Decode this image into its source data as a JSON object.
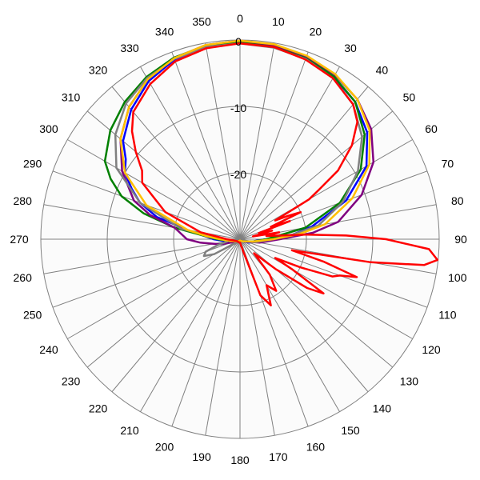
{
  "chart_data": {
    "type": "polar-line",
    "angle_ticks": [
      "0",
      "10",
      "20",
      "30",
      "40",
      "50",
      "60",
      "70",
      "80",
      "90",
      "100",
      "110",
      "120",
      "130",
      "140",
      "150",
      "160",
      "170",
      "180",
      "190",
      "200",
      "210",
      "220",
      "230",
      "240",
      "250",
      "260",
      "270",
      "280",
      "290",
      "300",
      "310",
      "320",
      "330",
      "340",
      "350"
    ],
    "radial_ticks": [
      "0",
      "-10",
      "-20"
    ],
    "rlim": [
      -30,
      0
    ],
    "angular_direction": "clockwise",
    "zero_at": "top",
    "grid": true,
    "legend": "none",
    "series": [
      {
        "color": "#ff0000",
        "points": [
          [
            0,
            -0.5
          ],
          [
            10,
            -0.6
          ],
          [
            20,
            -1.2
          ],
          [
            30,
            -2.0
          ],
          [
            40,
            -3.5
          ],
          [
            45,
            -5.0
          ],
          [
            50,
            -8.0
          ],
          [
            55,
            -12.0
          ],
          [
            58,
            -16.0
          ],
          [
            60,
            -18.0
          ],
          [
            62,
            -24.0
          ],
          [
            64,
            -22.0
          ],
          [
            66,
            -20.0
          ],
          [
            68,
            -25.0
          ],
          [
            70,
            -22.0
          ],
          [
            72,
            -27.0
          ],
          [
            75,
            -25.0
          ],
          [
            78,
            -28.0
          ],
          [
            80,
            -24.0
          ],
          [
            83,
            -26.0
          ],
          [
            86,
            -20.0
          ],
          [
            88,
            -14.0
          ],
          [
            90,
            -8.0
          ],
          [
            93,
            -1.5
          ],
          [
            96,
            -0.1
          ],
          [
            98,
            -2.0
          ],
          [
            100,
            -10.0
          ],
          [
            102,
            -22.0
          ],
          [
            105,
            -17.0
          ],
          [
            108,
            -11.5
          ],
          [
            110,
            -14.0
          ],
          [
            112,
            -15.0
          ],
          [
            115,
            -20.0
          ],
          [
            118,
            -24.0
          ],
          [
            120,
            -21.0
          ],
          [
            123,
            -15.0
          ],
          [
            126,
            -17.5
          ],
          [
            130,
            -23.0
          ],
          [
            135,
            -27.0
          ],
          [
            140,
            -23.0
          ],
          [
            145,
            -20.5
          ],
          [
            150,
            -22.0
          ],
          [
            155,
            -19.0
          ],
          [
            160,
            -21.0
          ],
          [
            165,
            -28.0
          ],
          [
            180,
            -29.5
          ],
          [
            200,
            -29.5
          ],
          [
            230,
            -29.5
          ],
          [
            260,
            -29.0
          ],
          [
            270,
            -28.0
          ],
          [
            280,
            -24.0
          ],
          [
            290,
            -18.0
          ],
          [
            300,
            -13.0
          ],
          [
            305,
            -12.0
          ],
          [
            310,
            -9.5
          ],
          [
            315,
            -7.0
          ],
          [
            320,
            -5.0
          ],
          [
            330,
            -3.0
          ],
          [
            340,
            -1.5
          ],
          [
            350,
            -0.8
          ],
          [
            360,
            -0.5
          ]
        ]
      },
      {
        "color": "#0000ff",
        "points": [
          [
            0,
            -0.3
          ],
          [
            10,
            -0.5
          ],
          [
            20,
            -1.0
          ],
          [
            30,
            -1.8
          ],
          [
            40,
            -3.0
          ],
          [
            50,
            -5.0
          ],
          [
            60,
            -8.0
          ],
          [
            70,
            -13.0
          ],
          [
            80,
            -19.0
          ],
          [
            85,
            -22.0
          ],
          [
            90,
            -26.0
          ],
          [
            95,
            -27.5
          ],
          [
            100,
            -28.0
          ],
          [
            110,
            -28.5
          ],
          [
            130,
            -29.5
          ],
          [
            180,
            -29.8
          ],
          [
            230,
            -29.5
          ],
          [
            250,
            -29.0
          ],
          [
            260,
            -28.0
          ],
          [
            270,
            -26.0
          ],
          [
            280,
            -22.0
          ],
          [
            285,
            -17.0
          ],
          [
            290,
            -14.0
          ],
          [
            295,
            -12.0
          ],
          [
            300,
            -10.0
          ],
          [
            305,
            -9.0
          ],
          [
            310,
            -7.0
          ],
          [
            320,
            -4.5
          ],
          [
            330,
            -2.5
          ],
          [
            340,
            -1.2
          ],
          [
            350,
            -0.5
          ],
          [
            360,
            -0.3
          ]
        ]
      },
      {
        "color": "#008000",
        "points": [
          [
            0,
            -0.2
          ],
          [
            10,
            -0.4
          ],
          [
            20,
            -0.9
          ],
          [
            30,
            -1.7
          ],
          [
            40,
            -3.0
          ],
          [
            50,
            -5.5
          ],
          [
            60,
            -9.0
          ],
          [
            70,
            -14.0
          ],
          [
            80,
            -20.0
          ],
          [
            90,
            -26.0
          ],
          [
            100,
            -28.0
          ],
          [
            130,
            -29.5
          ],
          [
            180,
            -29.8
          ],
          [
            230,
            -29.5
          ],
          [
            260,
            -28.5
          ],
          [
            270,
            -26.5
          ],
          [
            280,
            -20.0
          ],
          [
            285,
            -15.0
          ],
          [
            290,
            -11.0
          ],
          [
            295,
            -8.5
          ],
          [
            300,
            -6.5
          ],
          [
            310,
            -4.5
          ],
          [
            320,
            -3.0
          ],
          [
            330,
            -1.8
          ],
          [
            340,
            -0.9
          ],
          [
            350,
            -0.4
          ],
          [
            360,
            -0.2
          ]
        ]
      },
      {
        "color": "#800080",
        "points": [
          [
            0,
            -0.1
          ],
          [
            10,
            -0.3
          ],
          [
            20,
            -0.7
          ],
          [
            30,
            -1.4
          ],
          [
            40,
            -2.5
          ],
          [
            50,
            -4.2
          ],
          [
            60,
            -6.8
          ],
          [
            70,
            -10.5
          ],
          [
            80,
            -15.0
          ],
          [
            85,
            -19.0
          ],
          [
            90,
            -24.0
          ],
          [
            95,
            -26.0
          ],
          [
            100,
            -27.0
          ],
          [
            130,
            -29.5
          ],
          [
            180,
            -29.8
          ],
          [
            230,
            -29.5
          ],
          [
            250,
            -28.5
          ],
          [
            255,
            -27.0
          ],
          [
            260,
            -26.0
          ],
          [
            265,
            -24.0
          ],
          [
            270,
            -22.0
          ],
          [
            280,
            -20.0
          ],
          [
            285,
            -16.0
          ],
          [
            290,
            -13.0
          ],
          [
            300,
            -9.5
          ],
          [
            310,
            -6.5
          ],
          [
            320,
            -4.0
          ],
          [
            330,
            -2.2
          ],
          [
            340,
            -1.0
          ],
          [
            350,
            -0.3
          ],
          [
            360,
            -0.1
          ]
        ]
      },
      {
        "color": "#808080",
        "points": [
          [
            0,
            -0.5
          ],
          [
            10,
            -0.7
          ],
          [
            20,
            -1.1
          ],
          [
            30,
            -2.0
          ],
          [
            40,
            -3.5
          ],
          [
            50,
            -6.0
          ],
          [
            60,
            -9.5
          ],
          [
            70,
            -13.5
          ],
          [
            80,
            -18.0
          ],
          [
            85,
            -22.0
          ],
          [
            90,
            -25.0
          ],
          [
            100,
            -27.5
          ],
          [
            130,
            -29.5
          ],
          [
            180,
            -29.8
          ],
          [
            230,
            -29.0
          ],
          [
            240,
            -25.5
          ],
          [
            245,
            -24.0
          ],
          [
            250,
            -24.5
          ],
          [
            255,
            -26.5
          ],
          [
            260,
            -28.0
          ],
          [
            270,
            -27.5
          ],
          [
            280,
            -21.0
          ],
          [
            290,
            -14.0
          ],
          [
            300,
            -8.5
          ],
          [
            310,
            -5.5
          ],
          [
            320,
            -3.3
          ],
          [
            330,
            -2.0
          ],
          [
            340,
            -1.1
          ],
          [
            350,
            -0.6
          ],
          [
            360,
            -0.5
          ]
        ]
      },
      {
        "color": "#ffc000",
        "points": [
          [
            0,
            -0.1
          ],
          [
            10,
            -0.2
          ],
          [
            20,
            -0.6
          ],
          [
            30,
            -1.3
          ],
          [
            40,
            -2.5
          ],
          [
            50,
            -4.5
          ],
          [
            60,
            -7.5
          ],
          [
            70,
            -12.0
          ],
          [
            80,
            -17.0
          ],
          [
            85,
            -21.0
          ],
          [
            90,
            -25.0
          ],
          [
            100,
            -28.0
          ],
          [
            130,
            -29.5
          ],
          [
            180,
            -29.8
          ],
          [
            230,
            -29.5
          ],
          [
            260,
            -28.5
          ],
          [
            270,
            -27.0
          ],
          [
            275,
            -25.0
          ],
          [
            280,
            -22.0
          ],
          [
            290,
            -15.0
          ],
          [
            300,
            -10.0
          ],
          [
            310,
            -6.5
          ],
          [
            320,
            -4.0
          ],
          [
            330,
            -2.2
          ],
          [
            340,
            -1.0
          ],
          [
            350,
            -0.3
          ],
          [
            360,
            -0.1
          ]
        ]
      }
    ]
  }
}
